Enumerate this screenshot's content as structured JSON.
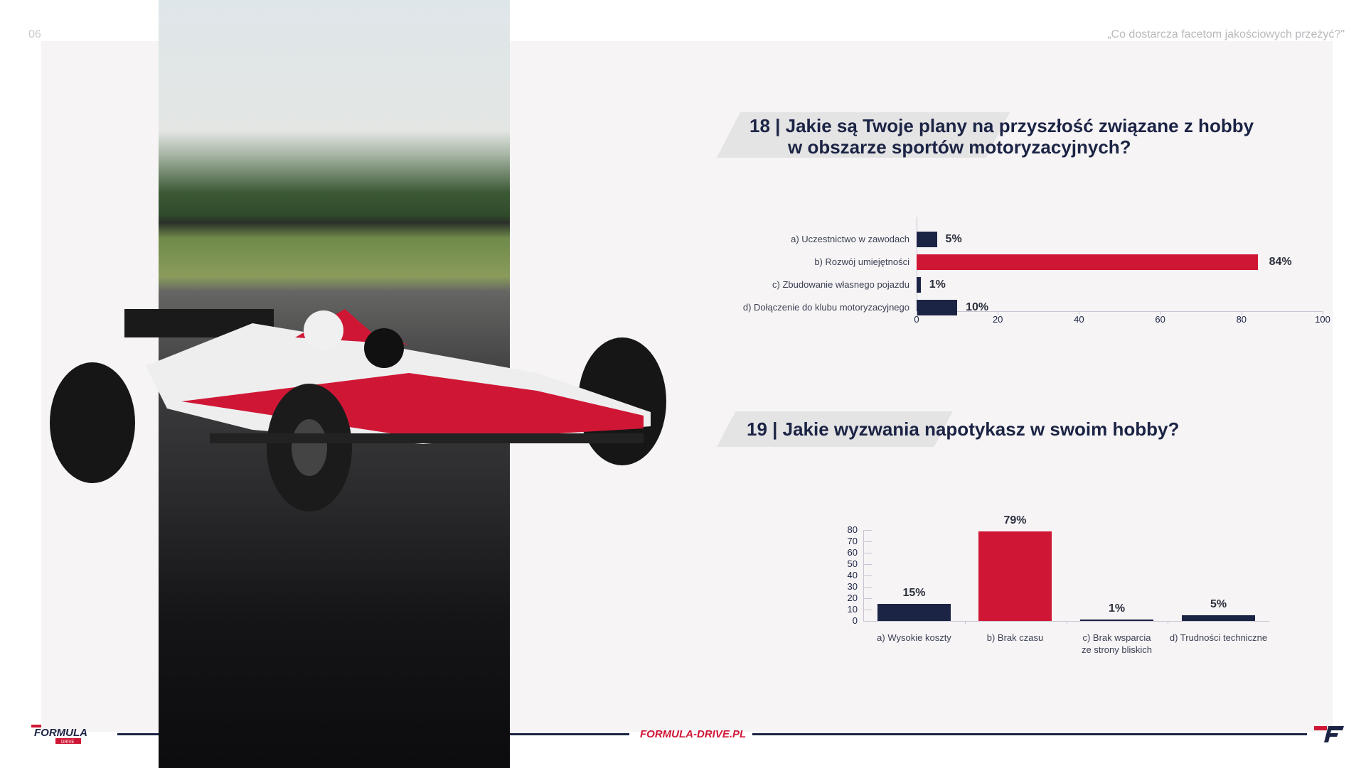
{
  "header": {
    "page_number": "06",
    "quote": "„Co dostarcza facetom jakościowych przeżyć?\""
  },
  "colors": {
    "navy": "#1c2445",
    "red": "#cf1735",
    "panel": "#f6f4f5"
  },
  "image": {
    "subject": "formula-race-car-photo"
  },
  "chart_data": [
    {
      "type": "bar",
      "orientation": "horizontal",
      "title": "18 | Jakie są Twoje plany na przyszłość związane z hobby w obszarze sportów motoryzacyjnych?",
      "title_lines": [
        "18 | Jakie są Twoje plany na przyszłość związane z hobby",
        "w obszarze sportów motoryzacyjnych?"
      ],
      "categories": [
        "a) Uczestnictwo w zawodach",
        "b) Rozwój umiejętności",
        "c) Zbudowanie własnego pojazdu",
        "d) Dołączenie do klubu motoryzacyjnego"
      ],
      "values": [
        5,
        84,
        1,
        10
      ],
      "labels": [
        "5%",
        "84%",
        "1%",
        "10%"
      ],
      "colors": [
        "#1c2445",
        "#cf1735",
        "#1c2445",
        "#1c2445"
      ],
      "xlim": [
        0,
        100
      ],
      "ticks": [
        "0",
        "20",
        "40",
        "60",
        "80",
        "100"
      ],
      "grid": false
    },
    {
      "type": "bar",
      "orientation": "vertical",
      "title": "19 | Jakie wyzwania napotykasz w swoim hobby?",
      "categories": [
        [
          "a) Wysokie koszty"
        ],
        [
          "b) Brak czasu"
        ],
        [
          "c) Brak wsparcia",
          "ze strony bliskich"
        ],
        [
          "d) Trudności techniczne"
        ]
      ],
      "values": [
        15,
        79,
        1,
        5
      ],
      "labels": [
        "15%",
        "79%",
        "1%",
        "5%"
      ],
      "colors": [
        "#1c2445",
        "#cf1735",
        "#1c2445",
        "#1c2445"
      ],
      "ylim": [
        0,
        80
      ],
      "ticks": [
        "0",
        "10",
        "20",
        "30",
        "40",
        "50",
        "60",
        "70",
        "80"
      ],
      "grid": false
    }
  ],
  "footer": {
    "logo": "FORMULA DRIVE",
    "site": "FORMULA-DRIVE.PL",
    "logo_mark": "F"
  }
}
